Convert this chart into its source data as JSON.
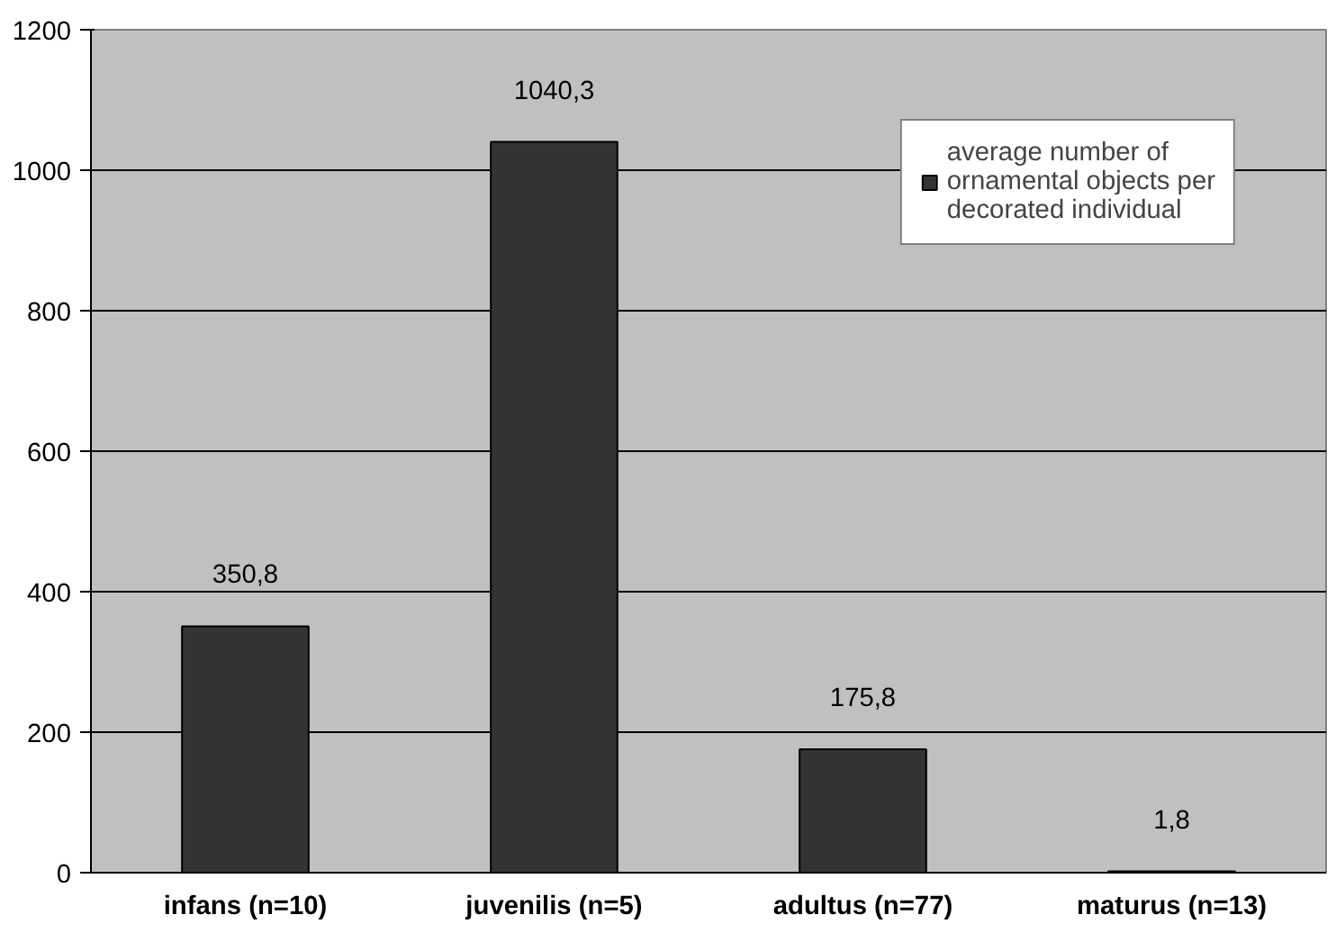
{
  "chart_data": {
    "type": "bar",
    "categories": [
      "infans (n=10)",
      "juvenilis (n=5)",
      "adultus (n=77)",
      "maturus (n=13)"
    ],
    "series": [
      {
        "name": "average number of ornamental objects per decorated individual",
        "color": "#333333",
        "values": [
          350.8,
          1040.3,
          175.8,
          1.8
        ],
        "value_labels": [
          "350,8",
          "1040,3",
          "175,8",
          "1,8"
        ]
      }
    ],
    "ylim": [
      0,
      1200
    ],
    "yticks": [
      0,
      200,
      400,
      600,
      800,
      1000,
      1200
    ],
    "grid": "y",
    "legend": "top right"
  }
}
